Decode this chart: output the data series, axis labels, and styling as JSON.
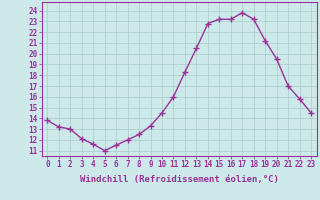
{
  "x": [
    0,
    1,
    2,
    3,
    4,
    5,
    6,
    7,
    8,
    9,
    10,
    11,
    12,
    13,
    14,
    15,
    16,
    17,
    18,
    19,
    20,
    21,
    22,
    23
  ],
  "y": [
    13.8,
    13.2,
    13.0,
    12.1,
    11.6,
    11.0,
    11.5,
    12.0,
    12.5,
    13.3,
    14.5,
    16.0,
    18.3,
    20.5,
    22.8,
    23.2,
    23.2,
    23.8,
    23.2,
    21.2,
    19.5,
    17.0,
    15.8,
    14.5
  ],
  "line_color": "#993399",
  "marker": "+",
  "markersize": 4,
  "linewidth": 1,
  "bg_color": "#cce8e8",
  "grid_color": "#aacccc",
  "ylabel_values": [
    11,
    12,
    13,
    14,
    15,
    16,
    17,
    18,
    19,
    20,
    21,
    22,
    23,
    24
  ],
  "ylim": [
    10.5,
    24.8
  ],
  "xlim": [
    -0.5,
    23.5
  ],
  "xlabel": "Windchill (Refroidissement éolien,°C)",
  "xlabel_fontsize": 6.5,
  "tick_fontsize": 5.5,
  "title_color": "#993399",
  "spine_color": "#993399"
}
